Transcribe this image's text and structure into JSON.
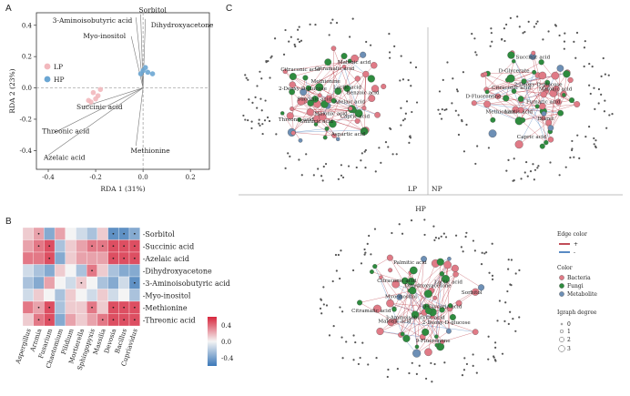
{
  "panels": {
    "a": "A",
    "b": "B",
    "c": "C"
  },
  "chart_data": [
    {
      "type": "scatter",
      "panel": "A",
      "xlabel": "RDA 1 (31%)",
      "ylabel": "RDA 2 (23%)",
      "xlim": [
        -0.45,
        0.28
      ],
      "ylim": [
        -0.52,
        0.48
      ],
      "xticks": [
        -0.4,
        -0.2,
        0.0,
        0.2
      ],
      "yticks": [
        -0.4,
        -0.2,
        0.0,
        0.2,
        0.4
      ],
      "xtick_labels": [
        "-0.4",
        "-0.2",
        "0.0",
        "0.2"
      ],
      "ytick_labels": [
        "-0.4",
        "-0.2",
        "0.0",
        "0.2",
        "0.4"
      ],
      "legend": [
        {
          "name": "LP",
          "color": "#f2b8bd"
        },
        {
          "name": "HP",
          "color": "#6ba6d3"
        }
      ],
      "groups": {
        "LP": [
          [
            -0.2,
            -0.07
          ],
          [
            -0.22,
            -0.09
          ],
          [
            -0.19,
            -0.05
          ],
          [
            -0.21,
            -0.03
          ],
          [
            -0.18,
            -0.01
          ],
          [
            -0.23,
            -0.08
          ]
        ],
        "HP": [
          [
            0.0,
            0.11
          ],
          [
            0.02,
            0.1
          ],
          [
            -0.01,
            0.09
          ],
          [
            0.01,
            0.13
          ],
          [
            0.04,
            0.09
          ]
        ]
      },
      "vectors": [
        {
          "name": "Sorbitol",
          "x": -0.01,
          "y": 0.47
        },
        {
          "name": "Dihydroxyacetone",
          "x": 0.01,
          "y": 0.44
        },
        {
          "name": "3-Aminoisobutyric acid",
          "x": -0.03,
          "y": 0.45
        },
        {
          "name": "Myo-inositol",
          "x": -0.05,
          "y": 0.33
        },
        {
          "name": "Succinic acid",
          "x": -0.25,
          "y": -0.12
        },
        {
          "name": "Threonic acid",
          "x": -0.38,
          "y": -0.29
        },
        {
          "name": "Azelaic acid",
          "x": -0.4,
          "y": -0.43
        },
        {
          "name": "Methionine",
          "x": -0.03,
          "y": -0.37
        }
      ]
    },
    {
      "type": "heatmap",
      "panel": "B",
      "rows": [
        "Sorbitol",
        "Succinic acid",
        "Azelaic acid",
        "Dihydroxyacetone",
        "3-Aminoisobutyric acid",
        "Myo-inositol",
        "Methionine",
        "Threonic acid"
      ],
      "columns": [
        "Aspergillus",
        "Arnmia",
        "Fusarium",
        "Chaetomium",
        "Pilidium",
        "Mortierella",
        "Sphingopyxis",
        "Massilia",
        "Devosia",
        "Bacillus",
        "Cupriavidus"
      ],
      "values": [
        [
          0.1,
          0.2,
          -0.3,
          0.2,
          0.0,
          -0.1,
          -0.2,
          0.1,
          -0.4,
          -0.4,
          -0.3
        ],
        [
          0.2,
          0.3,
          0.4,
          -0.2,
          0.1,
          0.2,
          0.3,
          0.3,
          0.4,
          0.4,
          0.4
        ],
        [
          0.3,
          0.3,
          0.4,
          -0.3,
          0.1,
          0.2,
          0.2,
          0.2,
          0.4,
          0.4,
          0.4
        ],
        [
          -0.1,
          -0.2,
          -0.3,
          0.1,
          0.0,
          -0.2,
          0.3,
          0.1,
          -0.2,
          -0.3,
          -0.3
        ],
        [
          -0.2,
          -0.3,
          0.2,
          0.0,
          -0.1,
          0.1,
          0.0,
          -0.2,
          -0.3,
          -0.1,
          -0.4
        ],
        [
          -0.1,
          0.1,
          0.0,
          -0.2,
          0.1,
          0.0,
          -0.1,
          0.1,
          -0.1,
          0.0,
          -0.2
        ],
        [
          0.3,
          0.2,
          0.4,
          -0.2,
          0.1,
          0.1,
          0.3,
          0.1,
          0.4,
          0.4,
          0.4
        ],
        [
          0.1,
          0.3,
          0.4,
          -0.3,
          0.2,
          0.1,
          0.2,
          0.3,
          0.4,
          0.4,
          0.4
        ]
      ],
      "significant": [
        [
          0,
          1,
          0,
          0,
          0,
          0,
          0,
          0,
          1,
          1,
          1
        ],
        [
          0,
          1,
          1,
          0,
          0,
          0,
          1,
          1,
          1,
          1,
          1
        ],
        [
          0,
          0,
          1,
          0,
          0,
          0,
          0,
          0,
          1,
          1,
          1
        ],
        [
          0,
          0,
          0,
          0,
          0,
          0,
          1,
          0,
          0,
          0,
          0
        ],
        [
          0,
          0,
          0,
          0,
          0,
          1,
          0,
          0,
          0,
          0,
          1
        ],
        [
          0,
          0,
          0,
          0,
          0,
          0,
          0,
          0,
          0,
          0,
          0
        ],
        [
          0,
          1,
          1,
          0,
          0,
          0,
          1,
          0,
          1,
          1,
          1
        ],
        [
          0,
          1,
          1,
          0,
          0,
          0,
          0,
          1,
          1,
          1,
          1
        ]
      ],
      "colorbar": {
        "range": [
          -0.5,
          0.5
        ],
        "ticks": [
          "0.4",
          "0.0",
          "-0.4"
        ],
        "low": "#3b78b8",
        "mid": "#f4f4f4",
        "high": "#d7263d"
      }
    },
    {
      "type": "network",
      "panel": "C",
      "networks": [
        {
          "name": "LP",
          "labels": [
            "Azelaic acid",
            "Capric acid",
            "Aspartic acid",
            "Malonic acid",
            "Sulfuric acid",
            "Threonic acid",
            "Succinic acid",
            "2-Deoxy-D-glucose",
            "Citraconic acid",
            "Methionine",
            "Citramalic acid",
            "Malonic acid",
            "Lactic acid",
            "Benzoic acid"
          ]
        },
        {
          "name": "NP",
          "labels": [
            "Fumaric acid",
            "Biuret",
            "Capric acid",
            "Lactic acid",
            "Methionine",
            "D-Fluorenone",
            "Citraconic acid",
            "D-Glycerate",
            "Succinic acid",
            "2-Deoxy-D-glucose",
            "Malonic acid"
          ]
        },
        {
          "name": "HP",
          "labels": [
            "D-Glyceric acid",
            "2-Deoxy-D-glucose",
            "9-Fluorenone",
            "3-Aminoisobutyric acid",
            "Malonic acid",
            "Citramalic acid",
            "Myo-inositol",
            "Citraconic acid",
            "Palmitic acid",
            "Dihydroxyacetone",
            "Lactic acid",
            "Sorbitol"
          ]
        }
      ],
      "legend": {
        "edge_title": "Edge color",
        "edge_items": [
          {
            "label": "+",
            "color": "#b0202e"
          },
          {
            "label": "-",
            "color": "#2f6db5"
          }
        ],
        "node_title": "Color",
        "node_items": [
          {
            "label": "Bacteria",
            "color": "#e07a86"
          },
          {
            "label": "Fungi",
            "color": "#2e8b3e"
          },
          {
            "label": "Metabolite",
            "color": "#6d8fb5"
          }
        ],
        "size_title": "Igraph degree",
        "size_items": [
          "0",
          "1",
          "2",
          "3"
        ]
      }
    }
  ]
}
